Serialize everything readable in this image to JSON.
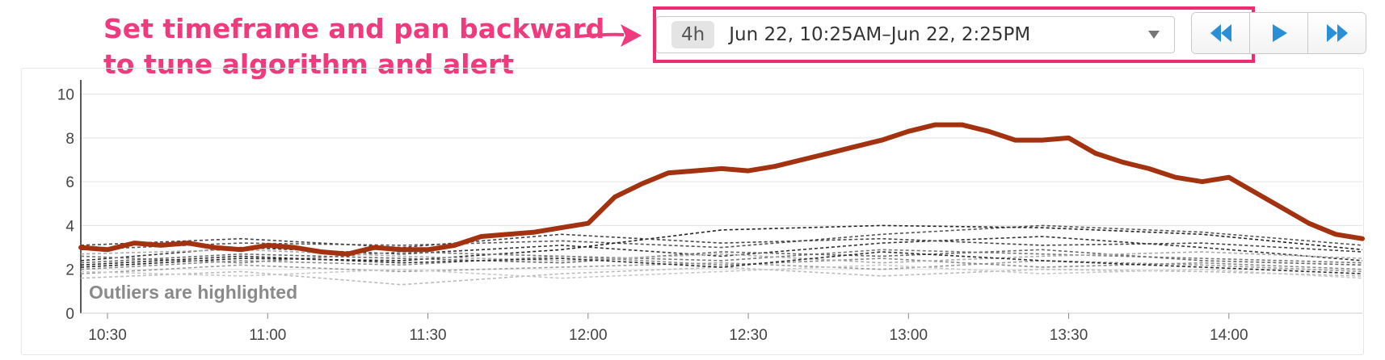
{
  "annotation": {
    "line1": "Set timeframe and pan backward",
    "line2": "to tune algorithm and alert",
    "color": "#ef3b7d"
  },
  "timeframe": {
    "badge": "4h",
    "range": "Jun 22, 10:25AM–Jun 22, 2:25PM",
    "dropdown_icon": "caret-down-icon"
  },
  "nav": {
    "buttons": [
      {
        "name": "pan-backward",
        "icon": "double-chevron-left-icon"
      },
      {
        "name": "play",
        "icon": "play-icon"
      },
      {
        "name": "pan-forward",
        "icon": "double-chevron-right-icon"
      }
    ],
    "icon_color": "#2a8fd6"
  },
  "highlight_color": "#ec2d72",
  "chart_note": "Outliers are highlighted",
  "chart_data": {
    "type": "line",
    "x_unit": "time (HH:MM)",
    "xlim": [
      "10:25",
      "14:25"
    ],
    "ylim": [
      0,
      10.5
    ],
    "grid": true,
    "legend": "none",
    "yticks": [
      0,
      2,
      4,
      6,
      8,
      10
    ],
    "xticks": [
      "10:30",
      "11:00",
      "11:30",
      "12:00",
      "12:30",
      "13:00",
      "13:30",
      "14:00"
    ],
    "highlight_color": "#a33310",
    "series": [
      {
        "outlier": true,
        "style": "solid",
        "x": [
          "10:25",
          "10:30",
          "10:35",
          "10:40",
          "10:45",
          "10:50",
          "10:55",
          "11:00",
          "11:05",
          "11:10",
          "11:15",
          "11:20",
          "11:25",
          "11:30",
          "11:35",
          "11:40",
          "11:45",
          "11:50",
          "11:55",
          "12:00",
          "12:05",
          "12:10",
          "12:15",
          "12:20",
          "12:25",
          "12:30",
          "12:35",
          "12:40",
          "12:45",
          "12:50",
          "12:55",
          "13:00",
          "13:05",
          "13:10",
          "13:15",
          "13:20",
          "13:25",
          "13:30",
          "13:35",
          "13:40",
          "13:45",
          "13:50",
          "13:55",
          "14:00",
          "14:05",
          "14:10",
          "14:15",
          "14:20",
          "14:25"
        ],
        "y": [
          3.0,
          2.9,
          3.2,
          3.1,
          3.2,
          3.0,
          2.9,
          3.1,
          3.0,
          2.8,
          2.7,
          3.0,
          2.9,
          2.9,
          3.1,
          3.5,
          3.6,
          3.7,
          3.9,
          4.1,
          5.3,
          5.9,
          6.4,
          6.5,
          6.6,
          6.5,
          6.7,
          7.0,
          7.3,
          7.6,
          7.9,
          8.3,
          8.6,
          8.6,
          8.3,
          7.9,
          7.9,
          8.0,
          7.3,
          6.9,
          6.6,
          6.2,
          6.0,
          6.2,
          5.5,
          4.8,
          4.1,
          3.6,
          3.4
        ]
      },
      {
        "color": "#333333",
        "style": "dashed",
        "x": [
          "10:25",
          "10:55",
          "11:25",
          "11:55",
          "12:25",
          "12:55",
          "13:25",
          "13:55",
          "14:25"
        ],
        "y": [
          2.4,
          3.0,
          2.7,
          3.1,
          2.6,
          3.2,
          3.5,
          3.0,
          2.4
        ]
      },
      {
        "color": "#555555",
        "style": "dashed",
        "x": [
          "10:25",
          "10:55",
          "11:25",
          "11:55",
          "12:25",
          "12:55",
          "13:25",
          "13:55",
          "14:25"
        ],
        "y": [
          2.9,
          3.2,
          3.1,
          3.3,
          3.0,
          3.6,
          4.0,
          3.7,
          3.1
        ]
      },
      {
        "color": "#222222",
        "style": "dashed",
        "x": [
          "10:25",
          "10:55",
          "11:25",
          "11:55",
          "12:25",
          "12:55",
          "13:25",
          "13:55",
          "14:25"
        ],
        "y": [
          2.1,
          2.5,
          2.4,
          2.9,
          3.8,
          4.0,
          3.9,
          3.6,
          2.9
        ]
      },
      {
        "color": "#777777",
        "style": "dashed",
        "x": [
          "10:25",
          "10:55",
          "11:25",
          "11:55",
          "12:25",
          "12:55",
          "13:25",
          "13:55",
          "14:25"
        ],
        "y": [
          2.6,
          2.3,
          2.8,
          2.6,
          2.4,
          2.9,
          2.7,
          2.5,
          2.3
        ]
      },
      {
        "color": "#444444",
        "style": "dashed",
        "x": [
          "10:25",
          "10:55",
          "11:25",
          "11:55",
          "12:25",
          "12:55",
          "13:25",
          "13:55",
          "14:25"
        ],
        "y": [
          3.1,
          3.4,
          3.0,
          3.6,
          3.2,
          3.4,
          3.1,
          3.2,
          2.8
        ]
      },
      {
        "color": "#999999",
        "style": "dashed",
        "x": [
          "10:25",
          "10:55",
          "11:25",
          "11:55",
          "12:25",
          "12:55",
          "13:25",
          "13:55",
          "14:25"
        ],
        "y": [
          1.8,
          2.2,
          1.9,
          2.1,
          2.3,
          2.0,
          2.4,
          2.2,
          1.9
        ]
      },
      {
        "color": "#bbbbbb",
        "style": "dashed",
        "x": [
          "10:25",
          "10:55",
          "11:25",
          "11:55",
          "12:25",
          "12:55",
          "13:25",
          "13:55",
          "14:25"
        ],
        "y": [
          1.6,
          1.9,
          1.3,
          1.8,
          2.1,
          1.7,
          2.0,
          1.9,
          1.7
        ]
      },
      {
        "color": "#666666",
        "style": "dashed",
        "x": [
          "10:25",
          "10:55",
          "11:25",
          "11:55",
          "12:25",
          "12:55",
          "13:25",
          "13:55",
          "14:25"
        ],
        "y": [
          2.3,
          2.7,
          2.5,
          2.3,
          2.8,
          2.6,
          2.9,
          2.4,
          2.2
        ]
      },
      {
        "color": "#888888",
        "style": "dashed",
        "x": [
          "10:25",
          "10:55",
          "11:25",
          "11:55",
          "12:25",
          "12:55",
          "13:25",
          "13:55",
          "14:25"
        ],
        "y": [
          2.0,
          2.4,
          2.2,
          2.6,
          2.2,
          2.5,
          2.1,
          2.3,
          2.0
        ]
      },
      {
        "color": "#aaaaaa",
        "style": "dashed",
        "x": [
          "10:25",
          "10:55",
          "11:25",
          "11:55",
          "12:25",
          "12:55",
          "13:25",
          "13:55",
          "14:25"
        ],
        "y": [
          2.7,
          2.9,
          2.6,
          2.4,
          2.7,
          2.3,
          2.6,
          2.8,
          2.5
        ]
      },
      {
        "color": "#2b2b2b",
        "style": "dashed",
        "x": [
          "10:25",
          "10:55",
          "11:25",
          "11:55",
          "12:25",
          "12:55",
          "13:25",
          "13:55",
          "14:25"
        ],
        "y": [
          2.2,
          2.6,
          2.3,
          2.5,
          2.1,
          2.8,
          2.4,
          2.1,
          1.8
        ]
      },
      {
        "color": "#c8c8c8",
        "style": "dashed",
        "x": [
          "10:25",
          "10:55",
          "11:25",
          "11:55",
          "12:25",
          "12:55",
          "13:25",
          "13:55",
          "14:25"
        ],
        "y": [
          1.9,
          1.7,
          2.0,
          1.6,
          1.9,
          2.2,
          1.8,
          2.0,
          1.6
        ]
      }
    ]
  }
}
